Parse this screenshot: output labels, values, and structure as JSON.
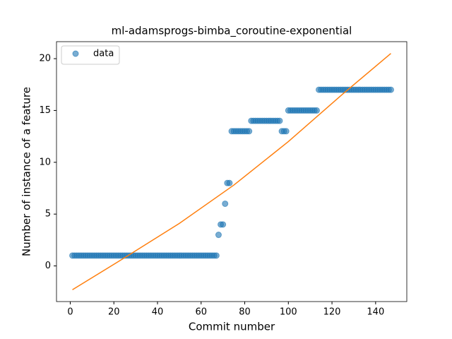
{
  "chart_data": {
    "type": "scatter",
    "title": "ml-adamsprogs-bimba_coroutine-exponential",
    "x_label": "Commit number",
    "y_label": "Number of instance of a feature",
    "xlim": [
      -6.3,
      154.3
    ],
    "ylim": [
      -3.44,
      21.64
    ],
    "xticks": [
      0,
      20,
      40,
      60,
      80,
      100,
      120,
      140
    ],
    "yticks": [
      0,
      5,
      10,
      15,
      20
    ],
    "grid": false,
    "legend": "upper left",
    "series": [
      {
        "name": "data",
        "color": "#1f77b4",
        "x": [
          1,
          2,
          3,
          4,
          5,
          6,
          7,
          8,
          9,
          10,
          11,
          12,
          13,
          14,
          15,
          16,
          17,
          18,
          19,
          20,
          21,
          22,
          23,
          24,
          25,
          26,
          27,
          28,
          29,
          30,
          31,
          32,
          33,
          34,
          35,
          36,
          37,
          38,
          39,
          40,
          41,
          42,
          43,
          44,
          45,
          46,
          47,
          48,
          49,
          50,
          51,
          52,
          53,
          54,
          55,
          56,
          57,
          58,
          59,
          60,
          61,
          62,
          63,
          64,
          65,
          66,
          67,
          68,
          69,
          70,
          71,
          72,
          73,
          74,
          75,
          76,
          77,
          78,
          79,
          80,
          81,
          82,
          83,
          84,
          85,
          86,
          87,
          88,
          89,
          90,
          91,
          92,
          93,
          94,
          95,
          96,
          97,
          98,
          99,
          100,
          101,
          102,
          103,
          104,
          105,
          106,
          107,
          108,
          109,
          110,
          111,
          112,
          113,
          114,
          115,
          116,
          117,
          118,
          119,
          120,
          121,
          122,
          123,
          124,
          125,
          126,
          127,
          128,
          129,
          130,
          131,
          132,
          133,
          134,
          135,
          136,
          137,
          138,
          139,
          140,
          141,
          142,
          143,
          144,
          145,
          146,
          147
        ],
        "values": [
          1,
          1,
          1,
          1,
          1,
          1,
          1,
          1,
          1,
          1,
          1,
          1,
          1,
          1,
          1,
          1,
          1,
          1,
          1,
          1,
          1,
          1,
          1,
          1,
          1,
          1,
          1,
          1,
          1,
          1,
          1,
          1,
          1,
          1,
          1,
          1,
          1,
          1,
          1,
          1,
          1,
          1,
          1,
          1,
          1,
          1,
          1,
          1,
          1,
          1,
          1,
          1,
          1,
          1,
          1,
          1,
          1,
          1,
          1,
          1,
          1,
          1,
          1,
          1,
          1,
          1,
          1,
          3,
          4,
          4,
          6,
          8,
          8,
          13,
          13,
          13,
          13,
          13,
          13,
          13,
          13,
          13,
          14,
          14,
          14,
          14,
          14,
          14,
          14,
          14,
          14,
          14,
          14,
          14,
          14,
          14,
          13,
          13,
          13,
          15,
          15,
          15,
          15,
          15,
          15,
          15,
          15,
          15,
          15,
          15,
          15,
          15,
          15,
          17,
          17,
          17,
          17,
          17,
          17,
          17,
          17,
          17,
          17,
          17,
          17,
          17,
          17,
          17,
          17,
          17,
          17,
          17,
          17,
          17,
          17,
          17,
          17,
          17,
          17,
          17,
          17,
          17,
          17,
          17,
          17,
          17,
          17
        ]
      },
      {
        "type": "line",
        "color": "#ff7f0e",
        "x": [
          1,
          25,
          50,
          75,
          100,
          125,
          147
        ],
        "values": [
          -2.3,
          0.8,
          4.1,
          7.8,
          12.0,
          16.6,
          20.5
        ]
      }
    ]
  }
}
